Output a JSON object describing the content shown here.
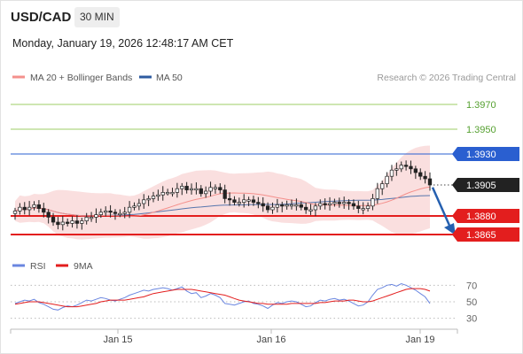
{
  "header": {
    "pair": "USD/CAD",
    "timeframe": "30 MIN",
    "datetime": "Monday, January 19, 2026 12:48:17 AM CET"
  },
  "legend": {
    "ma20_label": "MA 20 + Bollinger Bands",
    "ma50_label": "MA 50",
    "credit": "Research © 2026 Trading Central",
    "rsi_label": "RSI",
    "rsi_ma_label": "9MA"
  },
  "colors": {
    "ma20": "#f4908c",
    "ma50": "#2e5ba0",
    "bands": "#fadcdc",
    "resistance_green": "#9ccc66",
    "resistance_blue": "#2a5fd0",
    "support_red": "#e31e1e",
    "arrow": "#2560b0",
    "rsi": "#6a86e0",
    "rsi_ma": "#e31e1e",
    "bull_candle": "#ffffff",
    "bear_candle": "#222222"
  },
  "chart_data": {
    "type": "candlestick",
    "instrument": "USD/CAD",
    "timeframe": "30 MIN",
    "x_tick_labels": [
      "Jan 15",
      "Jan 16",
      "Jan 19"
    ],
    "ylim": [
      1.3855,
      1.3985
    ],
    "levels": [
      {
        "value": 1.397,
        "label": "1.3970",
        "kind": "resistance",
        "color": "#9ccc66"
      },
      {
        "value": 1.395,
        "label": "1.3950",
        "kind": "resistance",
        "color": "#9ccc66"
      },
      {
        "value": 1.393,
        "label": "1.3930",
        "kind": "resistance",
        "color": "#2a5fd0"
      },
      {
        "value": 1.3905,
        "label": "1.3905",
        "kind": "last_price",
        "color": "#222222"
      },
      {
        "value": 1.388,
        "label": "1.3880",
        "kind": "support",
        "color": "#e31e1e"
      },
      {
        "value": 1.3865,
        "label": "1.3865",
        "kind": "support",
        "color": "#e31e1e"
      }
    ],
    "forecast_arrow": {
      "from_value": 1.3903,
      "to_value": 1.3865,
      "direction": "down"
    },
    "close": [
      1.3884,
      1.3887,
      1.3885,
      1.3887,
      1.3889,
      1.3886,
      1.3883,
      1.3879,
      1.3875,
      1.3873,
      1.3875,
      1.3874,
      1.3876,
      1.3874,
      1.3876,
      1.3879,
      1.3879,
      1.3881,
      1.3883,
      1.3884,
      1.3883,
      1.3882,
      1.3882,
      1.3883,
      1.3887,
      1.3888,
      1.389,
      1.3893,
      1.3894,
      1.3896,
      1.3897,
      1.3899,
      1.3899,
      1.3899,
      1.3902,
      1.3904,
      1.3901,
      1.3902,
      1.3902,
      1.3898,
      1.39,
      1.3903,
      1.3903,
      1.3901,
      1.3894,
      1.3893,
      1.3891,
      1.3891,
      1.3893,
      1.3893,
      1.3891,
      1.389,
      1.3888,
      1.3885,
      1.3887,
      1.3889,
      1.3888,
      1.3889,
      1.3889,
      1.3889,
      1.3887,
      1.3885,
      1.3885,
      1.3888,
      1.389,
      1.3889,
      1.389,
      1.3891,
      1.389,
      1.3891,
      1.389,
      1.3888,
      1.3886,
      1.3886,
      1.3888,
      1.3894,
      1.3902,
      1.3906,
      1.3912,
      1.3917,
      1.3918,
      1.3921,
      1.392,
      1.3918,
      1.3915,
      1.3912,
      1.391,
      1.3905
    ],
    "rsi": {
      "label": "RSI",
      "ma_label": "9MA",
      "levels": [
        70,
        50,
        30
      ],
      "ylim": [
        20,
        80
      ],
      "values": [
        48,
        50,
        52,
        51,
        53,
        49,
        47,
        44,
        41,
        40,
        43,
        45,
        44,
        46,
        49,
        52,
        51,
        53,
        55,
        54,
        52,
        51,
        53,
        55,
        58,
        60,
        62,
        64,
        63,
        65,
        66,
        67,
        66,
        64,
        66,
        68,
        63,
        60,
        61,
        55,
        57,
        60,
        58,
        55,
        48,
        47,
        46,
        48,
        50,
        51,
        48,
        47,
        45,
        42,
        46,
        49,
        48,
        50,
        51,
        50,
        47,
        44,
        45,
        49,
        52,
        51,
        53,
        54,
        52,
        53,
        51,
        48,
        45,
        46,
        50,
        58,
        65,
        67,
        70,
        71,
        69,
        72,
        70,
        67,
        64,
        60,
        56,
        48
      ],
      "ma_values": [
        47,
        48,
        49,
        50,
        50,
        50,
        49,
        48,
        47,
        46,
        45,
        44,
        44,
        44,
        45,
        46,
        47,
        48,
        50,
        51,
        52,
        52,
        52,
        52,
        53,
        54,
        55,
        56,
        58,
        60,
        61,
        62,
        63,
        64,
        65,
        65,
        65,
        65,
        64,
        63,
        62,
        61,
        60,
        59,
        58,
        56,
        54,
        52,
        51,
        50,
        49,
        48,
        48,
        47,
        47,
        47,
        47,
        47,
        48,
        48,
        48,
        48,
        48,
        48,
        49,
        49,
        50,
        51,
        51,
        51,
        52,
        52,
        51,
        50,
        50,
        51,
        53,
        55,
        57,
        59,
        61,
        63,
        65,
        66,
        66,
        66,
        65,
        63
      ]
    }
  }
}
